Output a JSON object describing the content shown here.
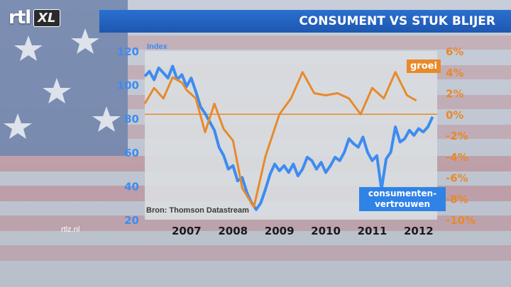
{
  "logo": {
    "brand": "rtl",
    "channel": "XL"
  },
  "header": {
    "title": "CONSUMENT VS STUK BLIJER"
  },
  "footer": {
    "site": "rtlz.nl",
    "source": "Bron: Thomson Datastream"
  },
  "labels": {
    "growth": "groei",
    "confidence_line1": "consumenten-",
    "confidence_line2": "vertrouwen"
  },
  "colors": {
    "growth": "#e8892a",
    "confidence": "#3d8cf0",
    "title_bar": "#2164c4",
    "plot_bg": "#d9dcdf"
  },
  "chart_data": {
    "type": "line",
    "title": "CONSUMENT VS STUK BLIJER",
    "x_ticks": [
      "2007",
      "2008",
      "2009",
      "2010",
      "2011",
      "2012"
    ],
    "x_tick_positions": [
      2007.0,
      2008.0,
      2009.0,
      2010.0,
      2011.0,
      2012.0
    ],
    "xlim": [
      2006.1,
      2012.4
    ],
    "y_left": {
      "label": "Index",
      "ticks": [
        "120",
        "100",
        "80",
        "60",
        "40",
        "20"
      ],
      "tick_values": [
        120,
        100,
        80,
        60,
        40,
        20
      ],
      "ylim": [
        20,
        120
      ]
    },
    "y_right": {
      "ticks": [
        "6%",
        "4%",
        "2%",
        "0%",
        "-2%",
        "-4%",
        "-6%",
        "-8%",
        "-10%"
      ],
      "tick_values": [
        6,
        4,
        2,
        0,
        -2,
        -4,
        -6,
        -8,
        -10
      ],
      "ylim": [
        -10,
        6
      ]
    },
    "reference_line": {
      "axis": "right",
      "value": 0
    },
    "grid": false,
    "series": [
      {
        "name": "consumentenvertrouwen",
        "axis": "left",
        "x": [
          2006.1,
          2006.2,
          2006.3,
          2006.4,
          2006.5,
          2006.6,
          2006.7,
          2006.8,
          2006.9,
          2007.0,
          2007.1,
          2007.2,
          2007.3,
          2007.4,
          2007.5,
          2007.6,
          2007.7,
          2007.8,
          2007.9,
          2008.0,
          2008.1,
          2008.2,
          2008.3,
          2008.4,
          2008.5,
          2008.6,
          2008.7,
          2008.8,
          2008.9,
          2009.0,
          2009.1,
          2009.2,
          2009.3,
          2009.4,
          2009.5,
          2009.6,
          2009.7,
          2009.8,
          2009.9,
          2010.0,
          2010.1,
          2010.2,
          2010.3,
          2010.4,
          2010.5,
          2010.6,
          2010.7,
          2010.8,
          2010.9,
          2011.0,
          2011.1,
          2011.2,
          2011.3,
          2011.4,
          2011.5,
          2011.6,
          2011.7,
          2011.8,
          2011.9,
          2012.0,
          2012.1,
          2012.2,
          2012.3
        ],
        "values": [
          105,
          108,
          103,
          110,
          107,
          104,
          111,
          103,
          106,
          99,
          104,
          96,
          87,
          83,
          78,
          73,
          63,
          58,
          50,
          52,
          43,
          45,
          36,
          30,
          26,
          30,
          38,
          47,
          53,
          49,
          52,
          48,
          53,
          46,
          50,
          57,
          55,
          50,
          54,
          48,
          52,
          57,
          55,
          60,
          68,
          65,
          63,
          69,
          60,
          55,
          58,
          38,
          56,
          60,
          75,
          66,
          68,
          73,
          70,
          74,
          72,
          75,
          81
        ]
      },
      {
        "name": "groei",
        "axis": "right",
        "x": [
          2006.1,
          2006.3,
          2006.5,
          2006.7,
          2006.9,
          2007.0,
          2007.2,
          2007.4,
          2007.6,
          2007.8,
          2008.0,
          2008.2,
          2008.45,
          2008.7,
          2009.0,
          2009.25,
          2009.5,
          2009.75,
          2010.0,
          2010.25,
          2010.5,
          2010.75,
          2011.0,
          2011.25,
          2011.5,
          2011.75,
          2011.95
        ],
        "values": [
          1.0,
          2.5,
          1.5,
          3.5,
          3.0,
          2.3,
          1.5,
          -1.7,
          1.0,
          -1.4,
          -2.5,
          -7.0,
          -8.8,
          -4.0,
          0.0,
          1.5,
          4.0,
          2.0,
          1.8,
          2.0,
          1.5,
          0.0,
          2.5,
          1.5,
          4.0,
          1.8,
          1.3
        ]
      }
    ]
  }
}
